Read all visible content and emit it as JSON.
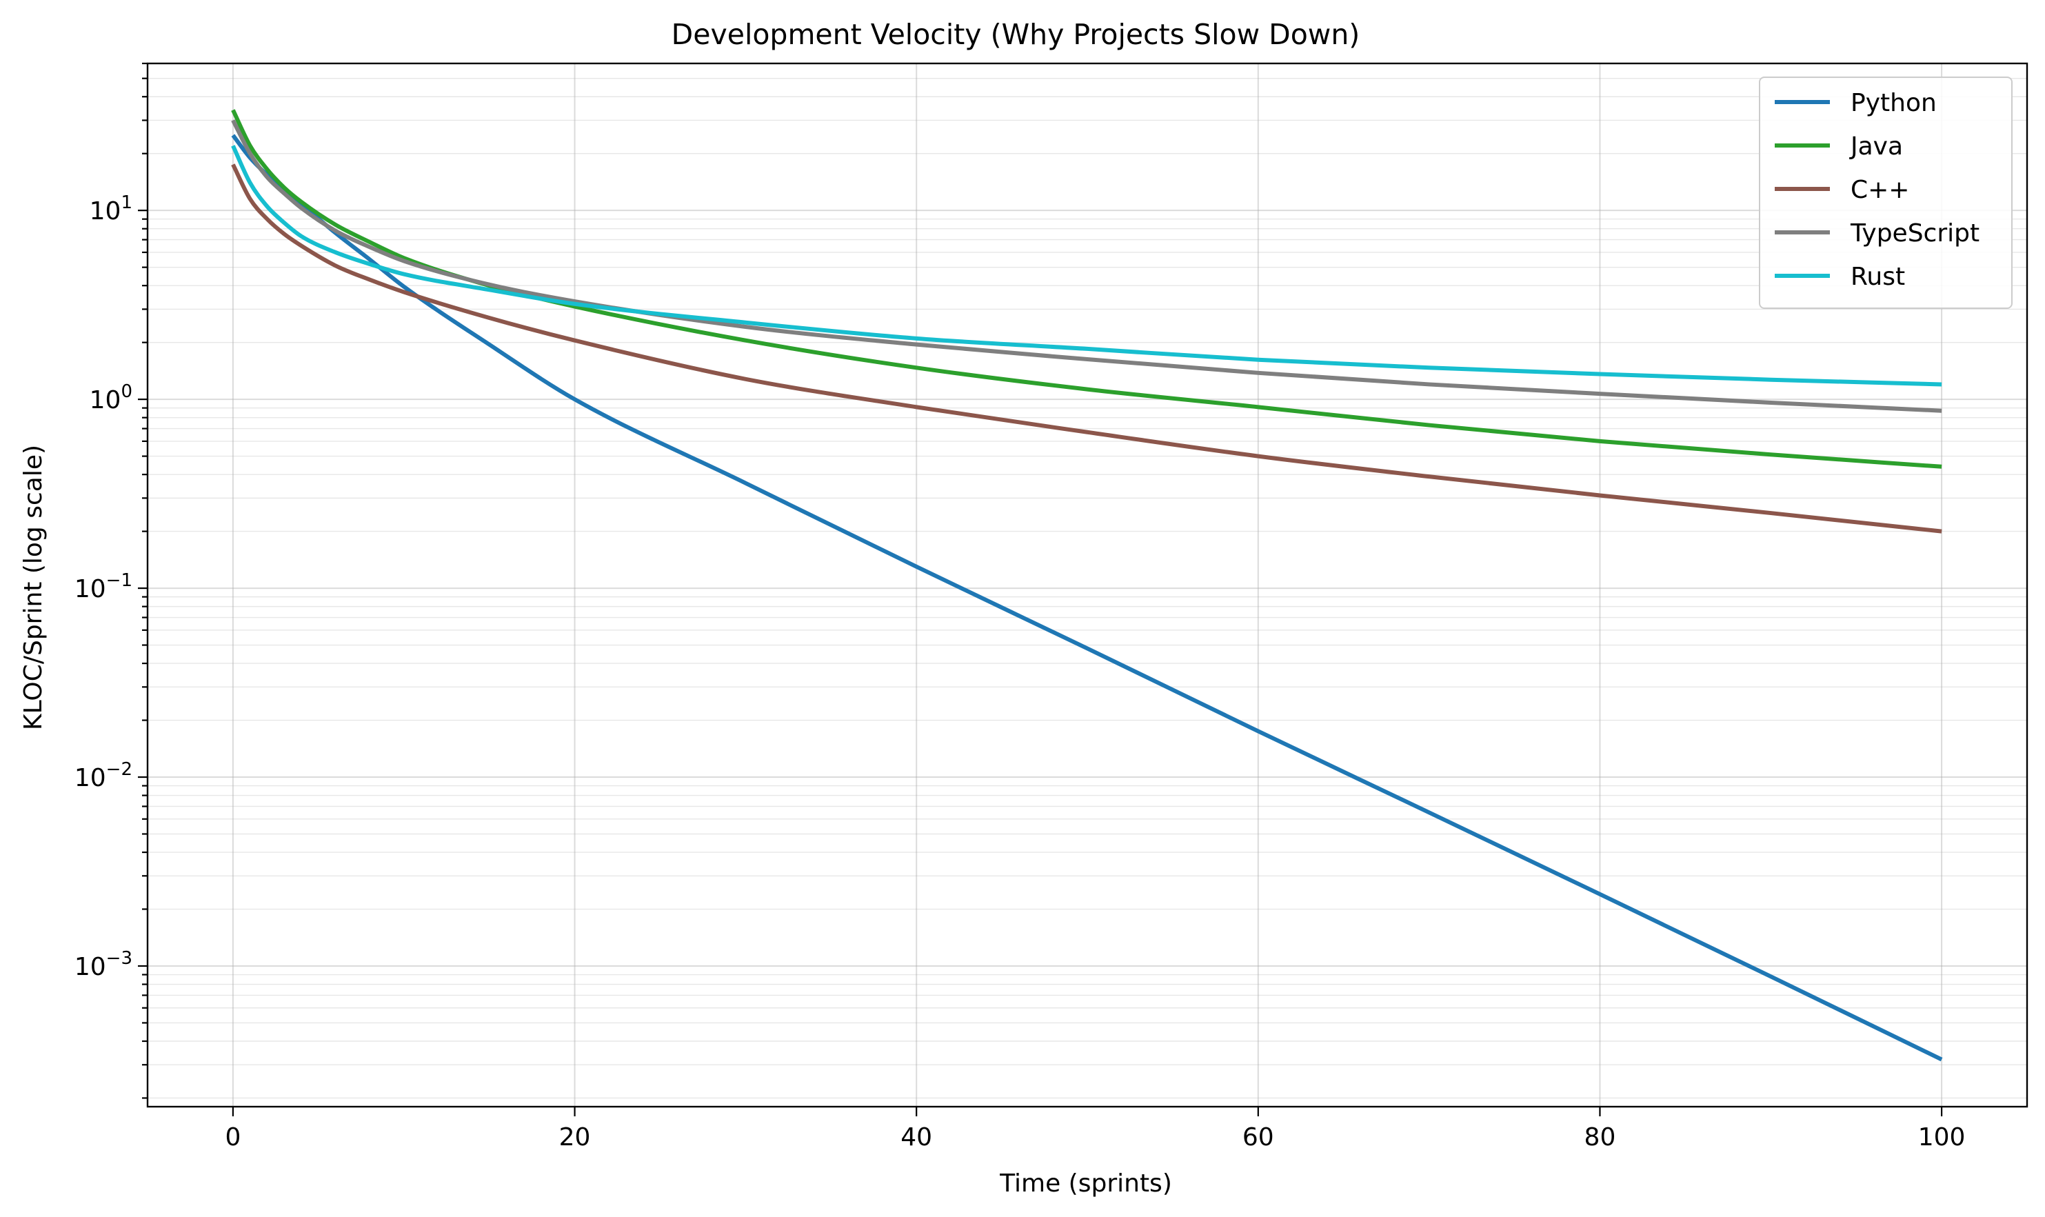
{
  "chart_data": {
    "type": "line",
    "title": "Development Velocity (Why Projects Slow Down)",
    "xlabel": "Time (sprints)",
    "ylabel": "KLOC/Sprint (log scale)",
    "xlim": [
      -5,
      105
    ],
    "ylim": [
      0.00018,
      60
    ],
    "yscale": "log",
    "xticks": [
      0,
      20,
      40,
      60,
      80,
      100
    ],
    "xtick_labels": [
      "0",
      "20",
      "40",
      "60",
      "80",
      "100"
    ],
    "yticks": [
      0.001,
      0.01,
      0.1,
      1,
      10
    ],
    "ytick_labels": [
      {
        "base": "10",
        "exp": "−3"
      },
      {
        "base": "10",
        "exp": "−2"
      },
      {
        "base": "10",
        "exp": "−1"
      },
      {
        "base": "10",
        "exp": "0"
      },
      {
        "base": "10",
        "exp": "1"
      }
    ],
    "grid": true,
    "legend_position": "top-right",
    "series": [
      {
        "name": "Python",
        "color": "#1f77b4",
        "x": [
          0,
          1,
          2,
          3,
          4,
          6,
          8,
          10,
          15,
          20,
          30,
          40,
          50,
          60,
          70,
          80,
          90,
          100
        ],
        "y": [
          25,
          19,
          15.4,
          12.8,
          10.8,
          7.6,
          5.5,
          3.95,
          1.95,
          1.0,
          0.36,
          0.13,
          0.048,
          0.0175,
          0.0065,
          0.0024,
          0.00088,
          0.00032
        ]
      },
      {
        "name": "Java",
        "color": "#2ca02c",
        "x": [
          0,
          1,
          2,
          3,
          4,
          6,
          8,
          10,
          15,
          20,
          30,
          40,
          50,
          60,
          70,
          80,
          90,
          100
        ],
        "y": [
          34,
          22,
          16.5,
          13.2,
          11.1,
          8.4,
          6.8,
          5.6,
          4.0,
          3.1,
          2.05,
          1.47,
          1.13,
          0.91,
          0.73,
          0.6,
          0.51,
          0.44
        ]
      },
      {
        "name": "C++",
        "color": "#8c564b",
        "x": [
          0,
          1,
          2,
          3,
          4,
          6,
          8,
          10,
          15,
          20,
          30,
          40,
          50,
          60,
          70,
          80,
          90,
          100
        ],
        "y": [
          17.5,
          11.5,
          9.0,
          7.5,
          6.5,
          5.1,
          4.3,
          3.7,
          2.7,
          2.05,
          1.28,
          0.91,
          0.67,
          0.5,
          0.39,
          0.31,
          0.25,
          0.2
        ]
      },
      {
        "name": "TypeScript",
        "color": "#7f7f7f",
        "x": [
          0,
          1,
          2,
          3,
          4,
          6,
          8,
          10,
          15,
          20,
          30,
          40,
          50,
          60,
          70,
          80,
          90,
          100
        ],
        "y": [
          30,
          20,
          15,
          12.3,
          10.3,
          7.8,
          6.4,
          5.4,
          4.05,
          3.3,
          2.42,
          1.95,
          1.63,
          1.38,
          1.2,
          1.07,
          0.96,
          0.87
        ]
      },
      {
        "name": "Rust",
        "color": "#17becf",
        "x": [
          0,
          1,
          2,
          3,
          4,
          6,
          8,
          10,
          15,
          20,
          30,
          40,
          50,
          60,
          70,
          80,
          90,
          100
        ],
        "y": [
          22,
          14,
          10.5,
          8.6,
          7.3,
          6.0,
          5.2,
          4.6,
          3.8,
          3.2,
          2.55,
          2.1,
          1.85,
          1.62,
          1.47,
          1.36,
          1.27,
          1.2
        ]
      }
    ]
  }
}
